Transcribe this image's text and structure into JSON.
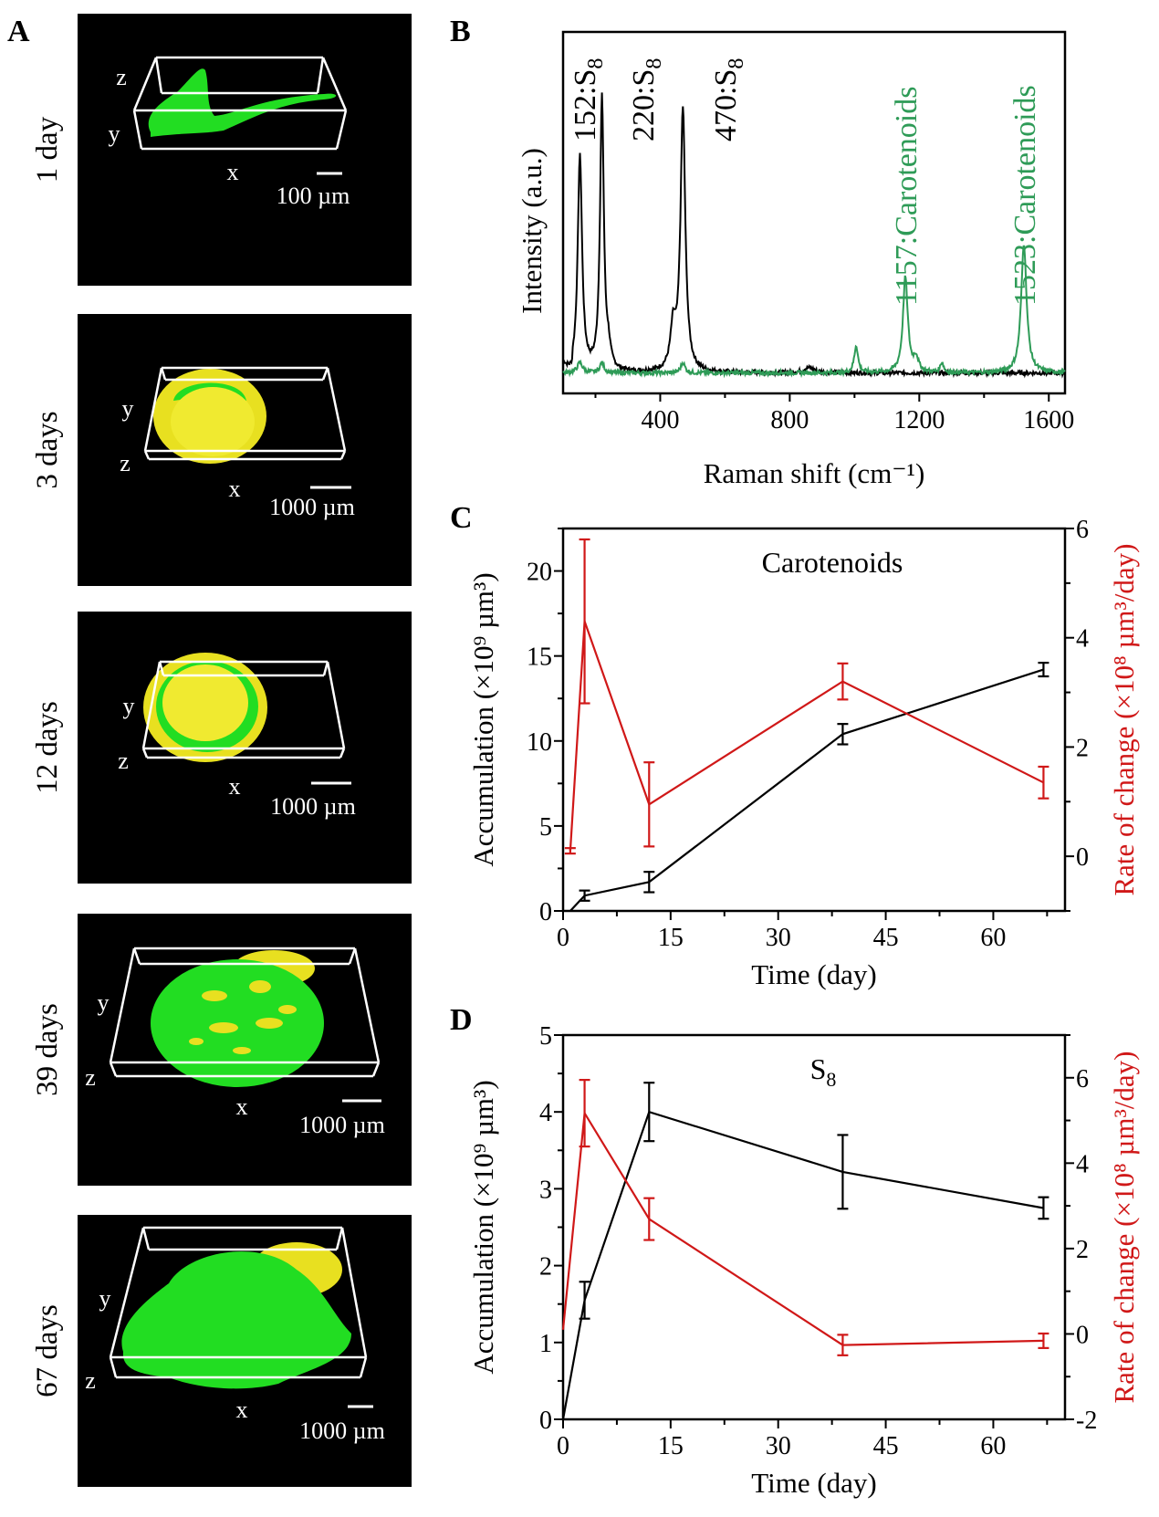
{
  "panels": {
    "A": {
      "letter": "A",
      "images": [
        {
          "day_label": "1 day",
          "axes": [
            "z",
            "y",
            "x"
          ],
          "scale_bar": "100 µm"
        },
        {
          "day_label": "3 days",
          "axes": [
            "y",
            "z",
            "x"
          ],
          "scale_bar": "1000 µm"
        },
        {
          "day_label": "12 days",
          "axes": [
            "y",
            "z",
            "x"
          ],
          "scale_bar": "1000 µm"
        },
        {
          "day_label": "39 days",
          "axes": [
            "y",
            "z",
            "x"
          ],
          "scale_bar": "1000 µm"
        },
        {
          "day_label": "67 days",
          "axes": [
            "y",
            "z",
            "x"
          ],
          "scale_bar": "1000 µm"
        }
      ],
      "colors": {
        "carotenoids": "#22dd22",
        "s8": "#e8e020",
        "background": "#000000",
        "box": "#ffffff"
      }
    },
    "B": {
      "letter": "B"
    },
    "C": {
      "letter": "C"
    },
    "D": {
      "letter": "D"
    }
  },
  "chart_data": [
    {
      "panel": "B",
      "type": "line",
      "xlabel": "Raman shift (cm⁻¹)",
      "ylabel": "Intensity (a.u.)",
      "xlim": [
        100,
        1650
      ],
      "ylim": [
        -0.06,
        1.0
      ],
      "xticks": [
        400,
        800,
        1200,
        1600
      ],
      "yticks_shown": false,
      "series": [
        {
          "color": "#000000",
          "baseline": 0,
          "peaks": [
            {
              "center": 152,
              "height": 0.63,
              "width": 8
            },
            {
              "center": 220,
              "height": 0.8,
              "width": 7
            },
            {
              "center": 240,
              "height": 0.05,
              "width": 8
            },
            {
              "center": 440,
              "height": 0.12,
              "width": 10
            },
            {
              "center": 470,
              "height": 0.77,
              "width": 9
            },
            {
              "center": 860,
              "height": 0.015,
              "width": 20
            }
          ]
        },
        {
          "color": "#2e9b57",
          "baseline": 0,
          "peaks": [
            {
              "center": 152,
              "height": 0.03,
              "width": 10
            },
            {
              "center": 220,
              "height": 0.03,
              "width": 8
            },
            {
              "center": 470,
              "height": 0.03,
              "width": 8
            },
            {
              "center": 1005,
              "height": 0.08,
              "width": 7
            },
            {
              "center": 1157,
              "height": 0.28,
              "width": 9
            },
            {
              "center": 1190,
              "height": 0.04,
              "width": 9
            },
            {
              "center": 1270,
              "height": 0.03,
              "width": 6
            },
            {
              "center": 1523,
              "height": 0.38,
              "width": 10
            }
          ]
        }
      ],
      "annotations": [
        {
          "x": 152,
          "text": "152:S",
          "sub": "8",
          "color": "#000000"
        },
        {
          "x": 220,
          "text": "220:S",
          "sub": "8",
          "color": "#000000"
        },
        {
          "x": 470,
          "text": "470:S",
          "sub": "8",
          "color": "#000000"
        },
        {
          "x": 1157,
          "text": "1157:Carotenoids",
          "sub": "",
          "color": "#2e9b57"
        },
        {
          "x": 1523,
          "text": "1523:Carotenoids",
          "sub": "",
          "color": "#2e9b57"
        }
      ]
    },
    {
      "panel": "C",
      "type": "line",
      "title": "Carotenoids",
      "title_sub": "",
      "xlabel": "Time (day)",
      "ylabel_left": "Accumulation (×10⁹ µm³)",
      "ylabel_right": "Rate of change (×10⁸ µm³/day)",
      "xlim": [
        0,
        70
      ],
      "xticks": [
        0,
        15,
        30,
        45,
        60
      ],
      "ylim_left": [
        0,
        22.5
      ],
      "yticks_left": [
        0,
        5,
        10,
        15,
        20
      ],
      "ylim_right": [
        -1,
        6
      ],
      "yticks_right": [
        0,
        2,
        4,
        6
      ],
      "series": [
        {
          "axis": "left",
          "color": "#000000",
          "x": [
            1,
            3,
            12,
            39,
            67
          ],
          "y": [
            0,
            0.9,
            1.7,
            10.4,
            14.2
          ],
          "err": [
            0,
            0.3,
            0.6,
            0.6,
            0.4
          ]
        },
        {
          "axis": "right",
          "color": "#d01818",
          "x": [
            1,
            3,
            12,
            39,
            67
          ],
          "y": [
            0.1,
            4.3,
            0.95,
            3.2,
            1.35
          ],
          "err": [
            0.05,
            1.5,
            0.77,
            0.33,
            0.29
          ]
        }
      ]
    },
    {
      "panel": "D",
      "type": "line",
      "title": "S",
      "title_sub": "8",
      "xlabel": "Time (day)",
      "ylabel_left": "Accumulation (×10⁹ µm³)",
      "ylabel_right": "Rate of change (×10⁸ µm³/day)",
      "xlim": [
        0,
        70
      ],
      "xticks": [
        0,
        15,
        30,
        45,
        60
      ],
      "ylim_left": [
        0,
        5
      ],
      "yticks_left": [
        0,
        1,
        2,
        3,
        4,
        5
      ],
      "ylim_right": [
        -2,
        7
      ],
      "yticks_right": [
        -2,
        0,
        2,
        4,
        6
      ],
      "series": [
        {
          "axis": "left",
          "color": "#000000",
          "x": [
            0,
            3,
            12,
            39,
            67
          ],
          "y": [
            0,
            1.55,
            4.0,
            3.22,
            2.75
          ],
          "err": [
            0,
            0.24,
            0.38,
            0.48,
            0.14
          ]
        },
        {
          "axis": "right",
          "color": "#d01818",
          "x": [
            0,
            3,
            12,
            39,
            67
          ],
          "y": [
            0.1,
            5.17,
            2.69,
            -0.26,
            -0.16
          ],
          "err": [
            0,
            0.78,
            0.49,
            0.24,
            0.17
          ]
        }
      ]
    }
  ]
}
